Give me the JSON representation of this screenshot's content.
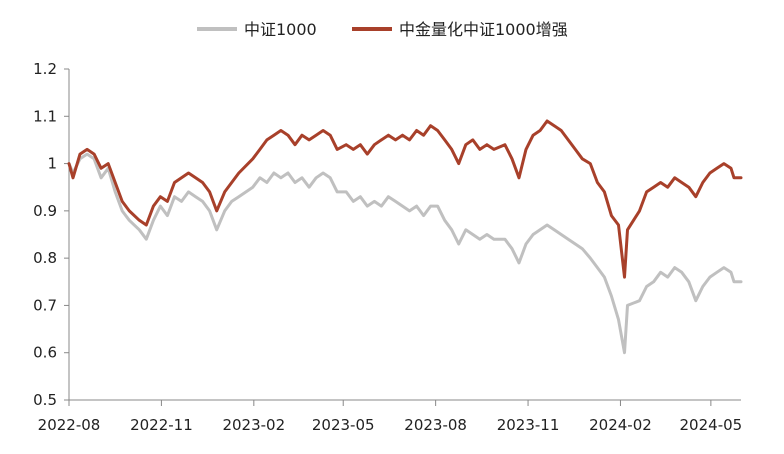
{
  "chart_data": {
    "type": "line",
    "title": "",
    "xlabel": "",
    "ylabel": "",
    "ylim": [
      0.5,
      1.2
    ],
    "yticks": [
      "0.5",
      "0.6",
      "0.7",
      "0.8",
      "0.9",
      "1",
      "1.1",
      "1.2"
    ],
    "xticks": [
      "2022-08",
      "2022-11",
      "2023-02",
      "2023-05",
      "2023-08",
      "2023-11",
      "2024-02",
      "2024-05"
    ],
    "x_range": [
      "2022-08-01",
      "2024-05-31"
    ],
    "grid": false,
    "legend_position": "top",
    "series": [
      {
        "name": "中证1000",
        "color": "#c0c0c0",
        "points": [
          [
            "2022-08-01",
            1.0
          ],
          [
            "2022-08-05",
            0.98
          ],
          [
            "2022-08-12",
            1.01
          ],
          [
            "2022-08-19",
            1.02
          ],
          [
            "2022-08-26",
            1.01
          ],
          [
            "2022-09-02",
            0.97
          ],
          [
            "2022-09-09",
            0.99
          ],
          [
            "2022-09-16",
            0.94
          ],
          [
            "2022-09-23",
            0.9
          ],
          [
            "2022-09-30",
            0.88
          ],
          [
            "2022-10-10",
            0.86
          ],
          [
            "2022-10-17",
            0.84
          ],
          [
            "2022-10-24",
            0.88
          ],
          [
            "2022-10-31",
            0.91
          ],
          [
            "2022-11-07",
            0.89
          ],
          [
            "2022-11-14",
            0.93
          ],
          [
            "2022-11-21",
            0.92
          ],
          [
            "2022-11-28",
            0.94
          ],
          [
            "2022-12-05",
            0.93
          ],
          [
            "2022-12-12",
            0.92
          ],
          [
            "2022-12-19",
            0.9
          ],
          [
            "2022-12-26",
            0.86
          ],
          [
            "2023-01-03",
            0.9
          ],
          [
            "2023-01-10",
            0.92
          ],
          [
            "2023-01-17",
            0.93
          ],
          [
            "2023-01-31",
            0.95
          ],
          [
            "2023-02-07",
            0.97
          ],
          [
            "2023-02-14",
            0.96
          ],
          [
            "2023-02-21",
            0.98
          ],
          [
            "2023-02-28",
            0.97
          ],
          [
            "2023-03-07",
            0.98
          ],
          [
            "2023-03-14",
            0.96
          ],
          [
            "2023-03-21",
            0.97
          ],
          [
            "2023-03-28",
            0.95
          ],
          [
            "2023-04-04",
            0.97
          ],
          [
            "2023-04-11",
            0.98
          ],
          [
            "2023-04-18",
            0.97
          ],
          [
            "2023-04-25",
            0.94
          ],
          [
            "2023-05-04",
            0.94
          ],
          [
            "2023-05-11",
            0.92
          ],
          [
            "2023-05-18",
            0.93
          ],
          [
            "2023-05-25",
            0.91
          ],
          [
            "2023-06-01",
            0.92
          ],
          [
            "2023-06-08",
            0.91
          ],
          [
            "2023-06-15",
            0.93
          ],
          [
            "2023-06-22",
            0.92
          ],
          [
            "2023-06-29",
            0.91
          ],
          [
            "2023-07-06",
            0.9
          ],
          [
            "2023-07-13",
            0.91
          ],
          [
            "2023-07-20",
            0.89
          ],
          [
            "2023-07-27",
            0.91
          ],
          [
            "2023-08-03",
            0.91
          ],
          [
            "2023-08-10",
            0.88
          ],
          [
            "2023-08-17",
            0.86
          ],
          [
            "2023-08-24",
            0.83
          ],
          [
            "2023-08-31",
            0.86
          ],
          [
            "2023-09-07",
            0.85
          ],
          [
            "2023-09-14",
            0.84
          ],
          [
            "2023-09-21",
            0.85
          ],
          [
            "2023-09-28",
            0.84
          ],
          [
            "2023-10-09",
            0.84
          ],
          [
            "2023-10-16",
            0.82
          ],
          [
            "2023-10-23",
            0.79
          ],
          [
            "2023-10-30",
            0.83
          ],
          [
            "2023-11-06",
            0.85
          ],
          [
            "2023-11-13",
            0.86
          ],
          [
            "2023-11-20",
            0.87
          ],
          [
            "2023-11-27",
            0.86
          ],
          [
            "2023-12-04",
            0.85
          ],
          [
            "2023-12-11",
            0.84
          ],
          [
            "2023-12-18",
            0.83
          ],
          [
            "2023-12-25",
            0.82
          ],
          [
            "2024-01-02",
            0.8
          ],
          [
            "2024-01-09",
            0.78
          ],
          [
            "2024-01-16",
            0.76
          ],
          [
            "2024-01-23",
            0.72
          ],
          [
            "2024-01-30",
            0.67
          ],
          [
            "2024-02-05",
            0.6
          ],
          [
            "2024-02-08",
            0.7
          ],
          [
            "2024-02-20",
            0.71
          ],
          [
            "2024-02-27",
            0.74
          ],
          [
            "2024-03-05",
            0.75
          ],
          [
            "2024-03-12",
            0.77
          ],
          [
            "2024-03-19",
            0.76
          ],
          [
            "2024-03-26",
            0.78
          ],
          [
            "2024-04-02",
            0.77
          ],
          [
            "2024-04-09",
            0.75
          ],
          [
            "2024-04-16",
            0.71
          ],
          [
            "2024-04-23",
            0.74
          ],
          [
            "2024-04-30",
            0.76
          ],
          [
            "2024-05-07",
            0.77
          ],
          [
            "2024-05-14",
            0.78
          ],
          [
            "2024-05-21",
            0.77
          ],
          [
            "2024-05-24",
            0.75
          ],
          [
            "2024-05-31",
            0.75
          ]
        ]
      },
      {
        "name": "中金量化中证1000增强",
        "color": "#a8402a",
        "points": [
          [
            "2022-08-01",
            1.0
          ],
          [
            "2022-08-05",
            0.97
          ],
          [
            "2022-08-12",
            1.02
          ],
          [
            "2022-08-19",
            1.03
          ],
          [
            "2022-08-26",
            1.02
          ],
          [
            "2022-09-02",
            0.99
          ],
          [
            "2022-09-09",
            1.0
          ],
          [
            "2022-09-16",
            0.96
          ],
          [
            "2022-09-23",
            0.92
          ],
          [
            "2022-09-30",
            0.9
          ],
          [
            "2022-10-10",
            0.88
          ],
          [
            "2022-10-17",
            0.87
          ],
          [
            "2022-10-24",
            0.91
          ],
          [
            "2022-10-31",
            0.93
          ],
          [
            "2022-11-07",
            0.92
          ],
          [
            "2022-11-14",
            0.96
          ],
          [
            "2022-11-21",
            0.97
          ],
          [
            "2022-11-28",
            0.98
          ],
          [
            "2022-12-05",
            0.97
          ],
          [
            "2022-12-12",
            0.96
          ],
          [
            "2022-12-19",
            0.94
          ],
          [
            "2022-12-26",
            0.9
          ],
          [
            "2023-01-03",
            0.94
          ],
          [
            "2023-01-10",
            0.96
          ],
          [
            "2023-01-17",
            0.98
          ],
          [
            "2023-01-31",
            1.01
          ],
          [
            "2023-02-07",
            1.03
          ],
          [
            "2023-02-14",
            1.05
          ],
          [
            "2023-02-21",
            1.06
          ],
          [
            "2023-02-28",
            1.07
          ],
          [
            "2023-03-07",
            1.06
          ],
          [
            "2023-03-14",
            1.04
          ],
          [
            "2023-03-21",
            1.06
          ],
          [
            "2023-03-28",
            1.05
          ],
          [
            "2023-04-04",
            1.06
          ],
          [
            "2023-04-11",
            1.07
          ],
          [
            "2023-04-18",
            1.06
          ],
          [
            "2023-04-25",
            1.03
          ],
          [
            "2023-05-04",
            1.04
          ],
          [
            "2023-05-11",
            1.03
          ],
          [
            "2023-05-18",
            1.04
          ],
          [
            "2023-05-25",
            1.02
          ],
          [
            "2023-06-01",
            1.04
          ],
          [
            "2023-06-08",
            1.05
          ],
          [
            "2023-06-15",
            1.06
          ],
          [
            "2023-06-22",
            1.05
          ],
          [
            "2023-06-29",
            1.06
          ],
          [
            "2023-07-06",
            1.05
          ],
          [
            "2023-07-13",
            1.07
          ],
          [
            "2023-07-20",
            1.06
          ],
          [
            "2023-07-27",
            1.08
          ],
          [
            "2023-08-03",
            1.07
          ],
          [
            "2023-08-10",
            1.05
          ],
          [
            "2023-08-17",
            1.03
          ],
          [
            "2023-08-24",
            1.0
          ],
          [
            "2023-08-31",
            1.04
          ],
          [
            "2023-09-07",
            1.05
          ],
          [
            "2023-09-14",
            1.03
          ],
          [
            "2023-09-21",
            1.04
          ],
          [
            "2023-09-28",
            1.03
          ],
          [
            "2023-10-09",
            1.04
          ],
          [
            "2023-10-16",
            1.01
          ],
          [
            "2023-10-23",
            0.97
          ],
          [
            "2023-10-30",
            1.03
          ],
          [
            "2023-11-06",
            1.06
          ],
          [
            "2023-11-13",
            1.07
          ],
          [
            "2023-11-20",
            1.09
          ],
          [
            "2023-11-27",
            1.08
          ],
          [
            "2023-12-04",
            1.07
          ],
          [
            "2023-12-11",
            1.05
          ],
          [
            "2023-12-18",
            1.03
          ],
          [
            "2023-12-25",
            1.01
          ],
          [
            "2024-01-02",
            1.0
          ],
          [
            "2024-01-09",
            0.96
          ],
          [
            "2024-01-16",
            0.94
          ],
          [
            "2024-01-23",
            0.89
          ],
          [
            "2024-01-30",
            0.87
          ],
          [
            "2024-02-05",
            0.76
          ],
          [
            "2024-02-08",
            0.86
          ],
          [
            "2024-02-20",
            0.9
          ],
          [
            "2024-02-27",
            0.94
          ],
          [
            "2024-03-05",
            0.95
          ],
          [
            "2024-03-12",
            0.96
          ],
          [
            "2024-03-19",
            0.95
          ],
          [
            "2024-03-26",
            0.97
          ],
          [
            "2024-04-02",
            0.96
          ],
          [
            "2024-04-09",
            0.95
          ],
          [
            "2024-04-16",
            0.93
          ],
          [
            "2024-04-23",
            0.96
          ],
          [
            "2024-04-30",
            0.98
          ],
          [
            "2024-05-07",
            0.99
          ],
          [
            "2024-05-14",
            1.0
          ],
          [
            "2024-05-21",
            0.99
          ],
          [
            "2024-05-24",
            0.97
          ],
          [
            "2024-05-31",
            0.97
          ]
        ]
      }
    ]
  }
}
